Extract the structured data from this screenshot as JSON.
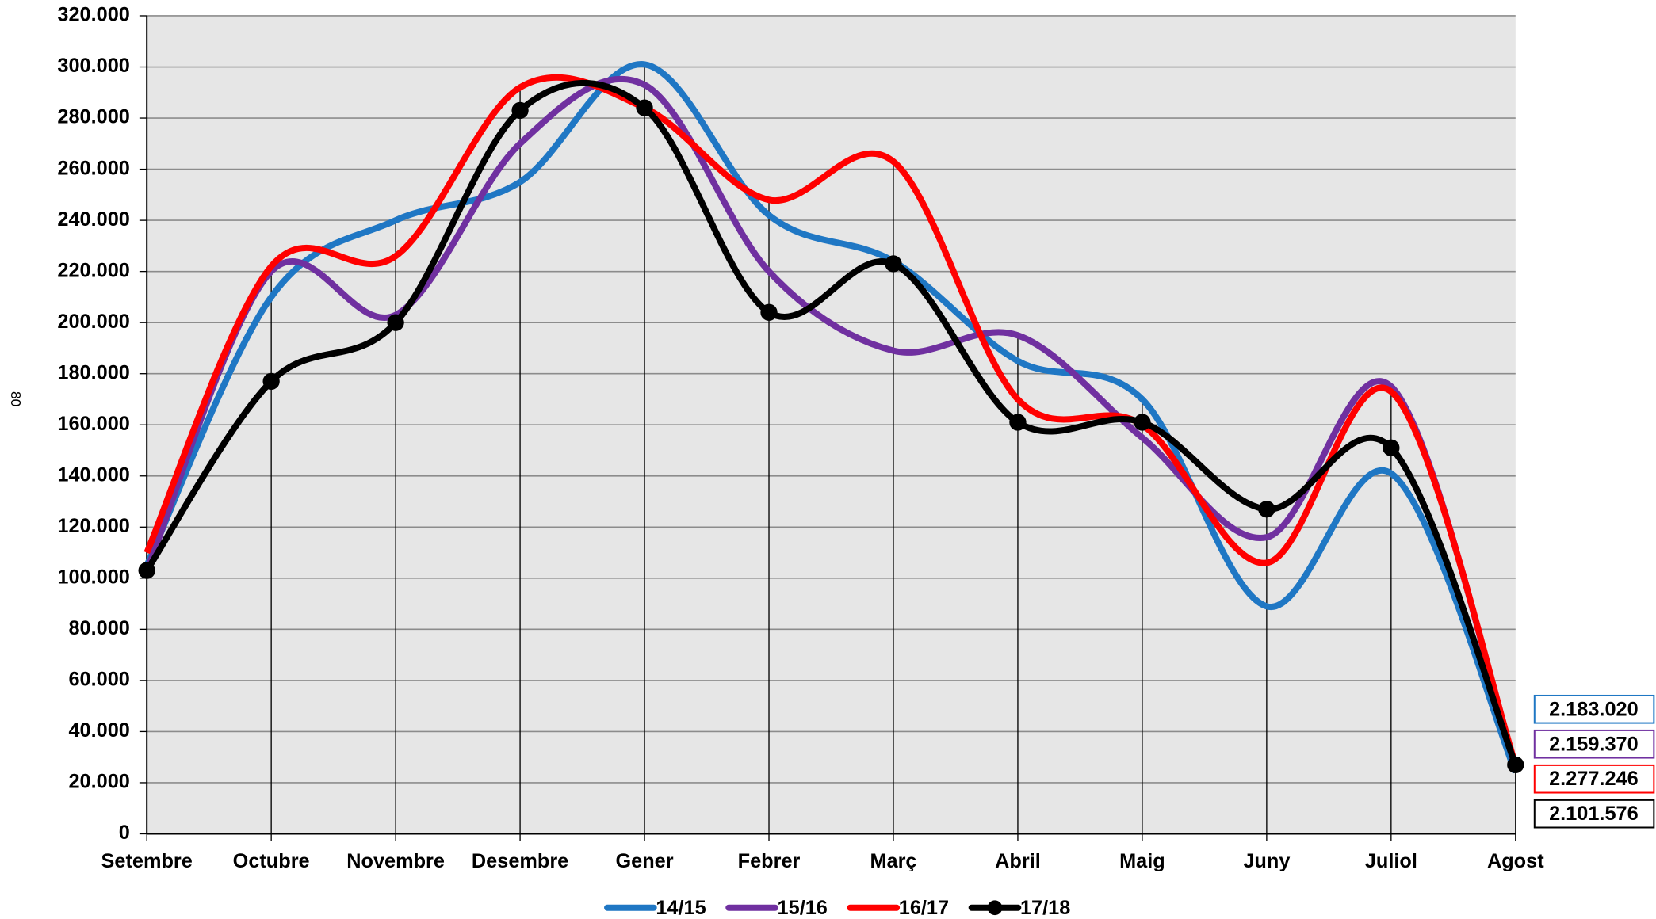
{
  "chart_data": {
    "type": "line",
    "smooth": true,
    "grid": true,
    "legend": "bottom",
    "side_text": "80",
    "categories": [
      "Setembre",
      "Octubre",
      "Novembre",
      "Desembre",
      "Gener",
      "Febrer",
      "Març",
      "Abril",
      "Maig",
      "Juny",
      "Juliol",
      "Agost"
    ],
    "ylim": [
      0,
      320000
    ],
    "yticks": [
      0,
      {
        "value": 20000,
        "label": "20.000"
      },
      {
        "value": 40000,
        "label": "40.000"
      },
      {
        "value": 60000,
        "label": "60.000"
      },
      {
        "value": 80000,
        "label": "80.000"
      },
      {
        "value": 100000,
        "label": "100.000"
      },
      {
        "value": 120000,
        "label": "120.000"
      },
      {
        "value": 140000,
        "label": "140.000"
      },
      {
        "value": 160000,
        "label": "160.000"
      },
      {
        "value": 180000,
        "label": "180.000"
      },
      {
        "value": 200000,
        "label": "200.000"
      },
      {
        "value": 220000,
        "label": "220.000"
      },
      {
        "value": 240000,
        "label": "240.000"
      },
      {
        "value": 260000,
        "label": "260.000"
      },
      {
        "value": 280000,
        "label": "280.000"
      },
      {
        "value": 300000,
        "label": "300.000"
      },
      {
        "value": 320000,
        "label": "320.000"
      }
    ],
    "series": [
      {
        "name": "14/15",
        "color": "#1f77c4",
        "total": "2.183.020",
        "markers": false,
        "values": [
          105000,
          210000,
          240000,
          255000,
          301000,
          242000,
          224000,
          185000,
          170000,
          89000,
          141000,
          24000
        ]
      },
      {
        "name": "15/16",
        "color": "#7030a0",
        "total": "2.159.370",
        "markers": false,
        "values": [
          103000,
          220000,
          203000,
          270000,
          293000,
          220000,
          189000,
          195000,
          155000,
          116000,
          175000,
          26000
        ]
      },
      {
        "name": "16/17",
        "color": "#ff0000",
        "total": "2.277.246",
        "markers": false,
        "values": [
          110000,
          222000,
          226000,
          292000,
          284000,
          248000,
          263000,
          170000,
          160000,
          106000,
          173000,
          27000
        ]
      },
      {
        "name": "17/18",
        "color": "#000000",
        "total": "2.101.576",
        "markers": true,
        "values": [
          103000,
          177000,
          200000,
          283000,
          284000,
          204000,
          223000,
          161000,
          161000,
          127000,
          151000,
          27000
        ]
      }
    ]
  }
}
